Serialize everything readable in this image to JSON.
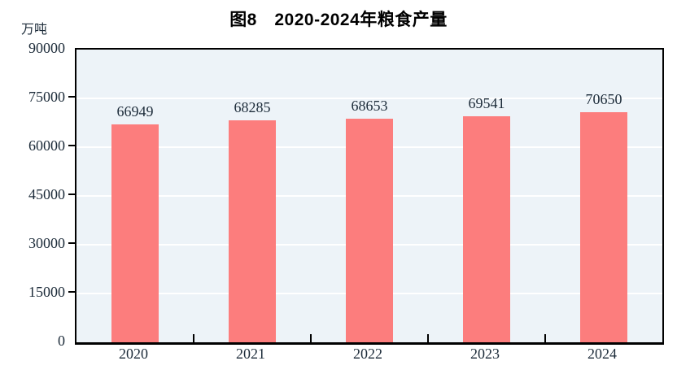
{
  "chart": {
    "title": "图8　2020-2024年粮食产量",
    "unit_label": "万吨"
  },
  "chart_data": {
    "type": "bar",
    "title": "图8　2020-2024年粮食产量",
    "categories": [
      "2020",
      "2021",
      "2022",
      "2023",
      "2024"
    ],
    "values": [
      66949,
      68285,
      68653,
      69541,
      70650
    ],
    "data_labels": [
      "66949",
      "68285",
      "68653",
      "69541",
      "70650"
    ],
    "xlabel": "",
    "ylabel": "万吨",
    "ylim": [
      0,
      90000
    ],
    "yticks": [
      0,
      15000,
      30000,
      45000,
      60000,
      75000,
      90000
    ],
    "ytick_labels": [
      "0",
      "15000",
      "30000",
      "45000",
      "60000",
      "75000",
      "90000"
    ],
    "grid": true,
    "legend": "none",
    "colors": {
      "bar_fill": "#fc7d7d",
      "plot_background": "#edf3f8",
      "gridline": "#ffffff",
      "axis": "#000000",
      "tick_text": "#1c2b39",
      "title_text": "#000000"
    }
  }
}
